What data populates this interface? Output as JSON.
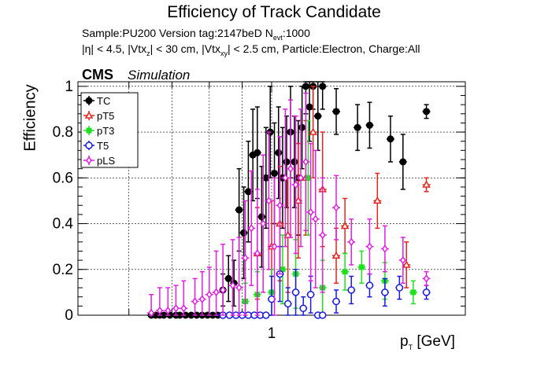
{
  "chart_data": {
    "type": "scatter",
    "title": "Efficiency of Track Candidate",
    "subtitle_lines": [
      "Sample:PU200   Version tag:2147beD  N_evt:1000",
      "|η| < 4.5, |Vtx_z| < 30 cm, |Vtx_xy| < 2.5 cm, Particle:Electron, Charge:All"
    ],
    "subtitle_parts": {
      "line1_pre": "Sample:PU200   Version tag:2147beD  N",
      "line1_sub": "evt",
      "line1_post": ":1000",
      "line2_a": "|η| < 4.5, |Vtx",
      "line2_sub1": "z",
      "line2_b": "| < 30 cm, |Vtx",
      "line2_sub2": "xy",
      "line2_c": "| < 2.5 cm, Particle:Electron, Charge:All"
    },
    "experiment_label": "CMS",
    "experiment_sublabel": "Simulation",
    "xlabel_main": "p",
    "xlabel_sub": "T",
    "xlabel_unit": " [GeV]",
    "ylabel": "Efficiency",
    "x_scale": "log",
    "xlim": [
      0.5,
      2.0
    ],
    "ylim": [
      0,
      1.02
    ],
    "x_tick_labels": [
      {
        "x": 1,
        "label": "1"
      }
    ],
    "y_ticks": [
      0,
      0.2,
      0.4,
      0.6,
      0.8,
      1
    ],
    "y_tick_labels": [
      "0",
      "0.2",
      "0.4",
      "0.6",
      "0.8",
      "1"
    ],
    "grid": true,
    "legend_position": "top-left",
    "series": [
      {
        "name": "TC",
        "color": "#000000",
        "marker": "filled-circle",
        "points": [
          {
            "x": 0.65,
            "y": 0
          },
          {
            "x": 0.66,
            "y": 0
          },
          {
            "x": 0.67,
            "y": 0
          },
          {
            "x": 0.68,
            "y": 0
          },
          {
            "x": 0.695,
            "y": 0
          },
          {
            "x": 0.71,
            "y": 0
          },
          {
            "x": 0.72,
            "y": 0
          },
          {
            "x": 0.735,
            "y": 0
          },
          {
            "x": 0.75,
            "y": 0
          },
          {
            "x": 0.765,
            "y": 0
          },
          {
            "x": 0.78,
            "y": 0
          },
          {
            "x": 0.795,
            "y": 0
          },
          {
            "x": 0.81,
            "y": 0
          },
          {
            "x": 0.825,
            "y": 0
          },
          {
            "x": 0.84,
            "y": 0.11,
            "err": 0.07
          },
          {
            "x": 0.857,
            "y": 0.16,
            "err": 0.1
          },
          {
            "x": 0.874,
            "y": 0.14,
            "err": 0.1
          },
          {
            "x": 0.89,
            "y": 0.46,
            "err": 0.18
          },
          {
            "x": 0.905,
            "y": 0.36,
            "err": 0.2
          },
          {
            "x": 0.92,
            "y": 0.54,
            "err": 0.22
          },
          {
            "x": 0.935,
            "y": 0.7,
            "err": 0.2
          },
          {
            "x": 0.95,
            "y": 0.71,
            "err": 0.2
          },
          {
            "x": 0.965,
            "y": 0.43,
            "err": 0.22
          },
          {
            "x": 0.98,
            "y": 0.6,
            "err": 0.22
          },
          {
            "x": 0.995,
            "y": 0.8,
            "err": 0.2
          },
          {
            "x": 1.01,
            "y": 0.62,
            "err": 0.22
          },
          {
            "x": 1.025,
            "y": 0.71,
            "err": 0.2
          },
          {
            "x": 1.04,
            "y": 0.6,
            "err": 0.22
          },
          {
            "x": 1.055,
            "y": 0.67,
            "err": 0.2
          },
          {
            "x": 1.07,
            "y": 0.8,
            "err": 0.2
          },
          {
            "x": 1.085,
            "y": 0.67,
            "err": 0.2
          },
          {
            "x": 1.1,
            "y": 0.6,
            "err": 0.25
          },
          {
            "x": 1.115,
            "y": 0.82,
            "err": 0.18
          },
          {
            "x": 1.13,
            "y": 1.0,
            "err": 0.12
          },
          {
            "x": 1.145,
            "y": 0.91,
            "err": 0.15
          },
          {
            "x": 1.16,
            "y": 1.0,
            "err": 0.1
          },
          {
            "x": 1.18,
            "y": 0.87,
            "err": 0.15
          },
          {
            "x": 1.2,
            "y": 1.0,
            "err": 0.1
          },
          {
            "x": 1.26,
            "y": 0.89,
            "err": 0.1
          },
          {
            "x": 1.36,
            "y": 0.82,
            "err": 0.1
          },
          {
            "x": 1.42,
            "y": 0.83,
            "err": 0.1
          },
          {
            "x": 1.53,
            "y": 0.77,
            "err": 0.1
          },
          {
            "x": 1.6,
            "y": 0.67,
            "err": 0.12
          },
          {
            "x": 1.74,
            "y": 0.89,
            "err": 0.03
          }
        ]
      },
      {
        "name": "pT5",
        "color": "#e8231c",
        "marker": "open-triangle",
        "points": [
          {
            "x": 0.95,
            "y": 0.27,
            "err": 0.2
          },
          {
            "x": 1.0,
            "y": 0.3,
            "err": 0.2
          },
          {
            "x": 1.03,
            "y": 0.4,
            "err": 0.25
          },
          {
            "x": 1.06,
            "y": 0.35,
            "err": 0.25
          },
          {
            "x": 1.1,
            "y": 0.5,
            "err": 0.25
          },
          {
            "x": 1.13,
            "y": 0.6,
            "err": 0.25
          },
          {
            "x": 1.16,
            "y": 0.8,
            "err": 0.2
          },
          {
            "x": 1.2,
            "y": 0.55,
            "err": 0.25
          },
          {
            "x": 1.26,
            "y": 0.26,
            "err": 0.12
          },
          {
            "x": 1.3,
            "y": 0.39,
            "err": 0.12
          },
          {
            "x": 1.46,
            "y": 0.5,
            "err": 0.12
          },
          {
            "x": 1.62,
            "y": 0.22,
            "err": 0.1
          },
          {
            "x": 1.74,
            "y": 0.57,
            "err": 0.03
          }
        ]
      },
      {
        "name": "pT3",
        "color": "#1fe01f",
        "marker": "filled-square",
        "points": [
          {
            "x": 0.91,
            "y": 0.06,
            "err": 0.08
          },
          {
            "x": 0.95,
            "y": 0.09,
            "err": 0.1
          },
          {
            "x": 1.0,
            "y": 0.1,
            "err": 0.1
          },
          {
            "x": 1.04,
            "y": 0.2,
            "err": 0.15
          },
          {
            "x": 1.09,
            "y": 0.18,
            "err": 0.15
          },
          {
            "x": 1.14,
            "y": 0.6,
            "err": 0.25
          },
          {
            "x": 1.2,
            "y": 0.12,
            "err": 0.12
          },
          {
            "x": 1.3,
            "y": 0.19,
            "err": 0.08
          },
          {
            "x": 1.38,
            "y": 0.21,
            "err": 0.07
          },
          {
            "x": 1.5,
            "y": 0.15,
            "err": 0.08
          },
          {
            "x": 1.66,
            "y": 0.1,
            "err": 0.05
          }
        ]
      },
      {
        "name": "T5",
        "color": "#1b1bdf",
        "marker": "open-circle",
        "points": [
          {
            "x": 0.84,
            "y": 0
          },
          {
            "x": 0.86,
            "y": 0
          },
          {
            "x": 0.88,
            "y": 0
          },
          {
            "x": 0.9,
            "y": 0
          },
          {
            "x": 0.92,
            "y": 0
          },
          {
            "x": 0.94,
            "y": 0
          },
          {
            "x": 0.96,
            "y": 0
          },
          {
            "x": 0.98,
            "y": 0
          },
          {
            "x": 1.0,
            "y": 0.07,
            "err": 0.1
          },
          {
            "x": 1.03,
            "y": 0.18,
            "err": 0.12
          },
          {
            "x": 1.06,
            "y": 0.05,
            "err": 0.07
          },
          {
            "x": 1.09,
            "y": 0.1,
            "err": 0.1
          },
          {
            "x": 1.12,
            "y": 0.03,
            "err": 0.05
          },
          {
            "x": 1.15,
            "y": 0.09,
            "err": 0.08
          },
          {
            "x": 1.18,
            "y": 0
          },
          {
            "x": 1.2,
            "y": 0
          },
          {
            "x": 1.26,
            "y": 0.06,
            "err": 0.05
          },
          {
            "x": 1.33,
            "y": 0.11,
            "err": 0.06
          },
          {
            "x": 1.42,
            "y": 0.13,
            "err": 0.05
          },
          {
            "x": 1.5,
            "y": 0.1,
            "err": 0.06
          },
          {
            "x": 1.58,
            "y": 0.12,
            "err": 0.05
          },
          {
            "x": 1.74,
            "y": 0.1,
            "err": 0.03
          }
        ]
      },
      {
        "name": "pLS",
        "color": "#e01fe0",
        "marker": "open-diamond",
        "points": [
          {
            "x": 0.65,
            "y": 0.01,
            "err": 0.08
          },
          {
            "x": 0.67,
            "y": 0.02,
            "err": 0.1
          },
          {
            "x": 0.69,
            "y": 0.02,
            "err": 0.1
          },
          {
            "x": 0.71,
            "y": 0.03,
            "err": 0.1
          },
          {
            "x": 0.73,
            "y": 0.03,
            "err": 0.12
          },
          {
            "x": 0.76,
            "y": 0.06,
            "err": 0.1
          },
          {
            "x": 0.78,
            "y": 0.07,
            "err": 0.12
          },
          {
            "x": 0.8,
            "y": 0.09,
            "err": 0.12
          },
          {
            "x": 0.82,
            "y": 0.1,
            "err": 0.18
          },
          {
            "x": 0.84,
            "y": 0.11,
            "err": 0.2
          },
          {
            "x": 0.87,
            "y": 0.13,
            "err": 0.2
          },
          {
            "x": 0.89,
            "y": 0.12,
            "err": 0.22
          },
          {
            "x": 0.91,
            "y": 0.25,
            "err": 0.25
          },
          {
            "x": 0.93,
            "y": 0.38,
            "err": 0.25
          },
          {
            "x": 0.95,
            "y": 0.27,
            "err": 0.28
          },
          {
            "x": 0.97,
            "y": 0.4,
            "err": 0.3
          },
          {
            "x": 0.99,
            "y": 0.5,
            "err": 0.3
          },
          {
            "x": 1.01,
            "y": 0.3,
            "err": 0.3
          },
          {
            "x": 1.03,
            "y": 0.48,
            "err": 0.3
          },
          {
            "x": 1.05,
            "y": 0.6,
            "err": 0.3
          },
          {
            "x": 1.07,
            "y": 0.64,
            "err": 0.3
          },
          {
            "x": 1.09,
            "y": 0.57,
            "err": 0.3
          },
          {
            "x": 1.11,
            "y": 0.6,
            "err": 0.3
          },
          {
            "x": 1.13,
            "y": 0.67,
            "err": 0.3
          },
          {
            "x": 1.15,
            "y": 0.45,
            "err": 0.3
          },
          {
            "x": 1.17,
            "y": 0.42,
            "err": 0.3
          },
          {
            "x": 1.2,
            "y": 0.35,
            "err": 0.25
          },
          {
            "x": 1.26,
            "y": 0.47,
            "err": 0.14
          },
          {
            "x": 1.33,
            "y": 0.32,
            "err": 0.1
          },
          {
            "x": 1.42,
            "y": 0.3,
            "err": 0.12
          },
          {
            "x": 1.5,
            "y": 0.29,
            "err": 0.1
          },
          {
            "x": 1.6,
            "y": 0.24,
            "err": 0.1
          },
          {
            "x": 1.74,
            "y": 0.16,
            "err": 0.03
          }
        ]
      }
    ]
  }
}
